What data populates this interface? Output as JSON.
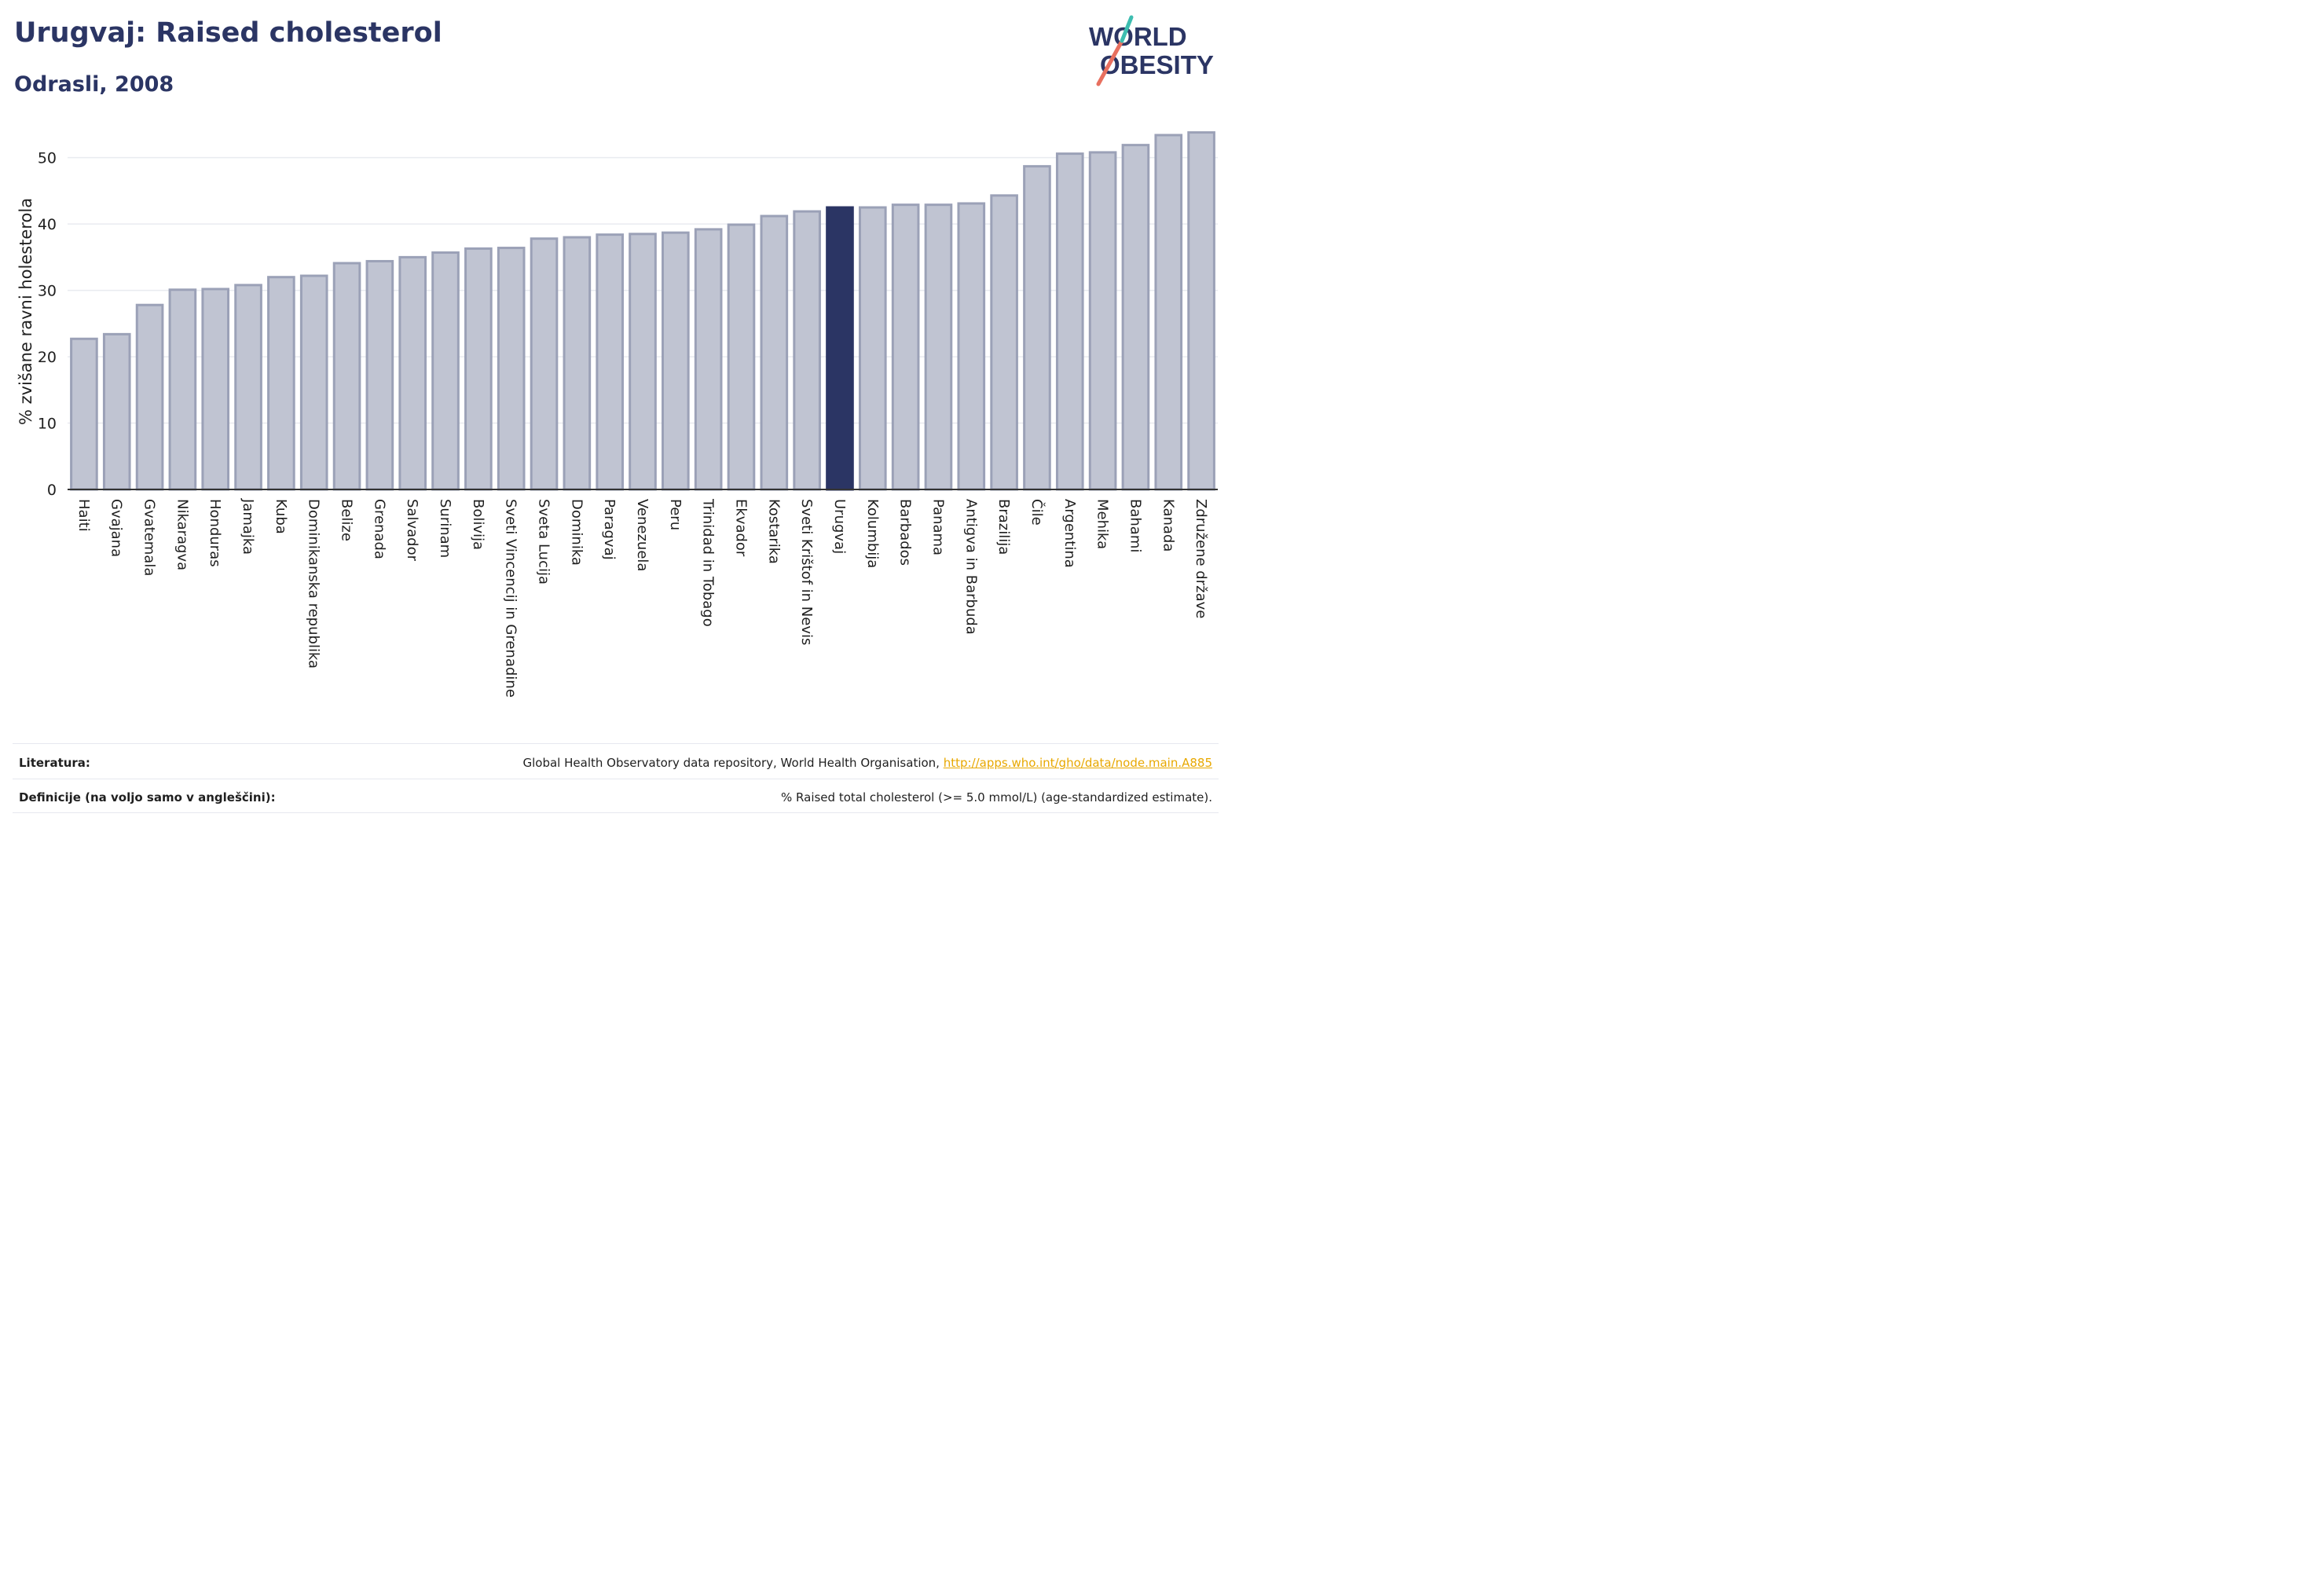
{
  "header": {
    "title": "Urugvaj: Raised cholesterol",
    "subtitle": "Odrasli, 2008"
  },
  "logo": {
    "line1": "WORLD",
    "line2": "OBESITY",
    "text_color": "#2b3564",
    "slash_colors": [
      "#e8705f",
      "#3dbdb0"
    ]
  },
  "colors": {
    "bar_default": "#c0c4d2",
    "bar_default_border": "#9ba1b7",
    "bar_highlight": "#2b3564",
    "gridline": "#e9ebf0",
    "axis": "#333333"
  },
  "chart_data": {
    "type": "bar",
    "ylabel": "% zvišane ravni holesterola",
    "xlabel": "",
    "ylim": [
      0,
      56
    ],
    "yticks": [
      0,
      10,
      20,
      30,
      40,
      50
    ],
    "grid": true,
    "highlight": "Urugvaj",
    "categories": [
      "Haiti",
      "Gvajana",
      "Gvatemala",
      "Nikaragva",
      "Honduras",
      "Jamajka",
      "Kuba",
      "Dominikanska republika",
      "Belize",
      "Grenada",
      "Salvador",
      "Surinam",
      "Bolivija",
      "Sveti Vincencij in Grenadine",
      "Sveta Lucija",
      "Dominika",
      "Paragvaj",
      "Venezuela",
      "Peru",
      "Trinidad in Tobago",
      "Ekvador",
      "Kostarika",
      "Sveti Krištof in Nevis",
      "Urugvaj",
      "Kolumbija",
      "Barbados",
      "Panama",
      "Antigva in Barbuda",
      "Brazilija",
      "Čile",
      "Argentina",
      "Mehika",
      "Bahami",
      "Kanada",
      "Združene države"
    ],
    "values": [
      22.7,
      23.4,
      27.8,
      30.1,
      30.2,
      30.8,
      32.0,
      32.2,
      34.1,
      34.4,
      35.0,
      35.7,
      36.3,
      36.4,
      37.8,
      38.0,
      38.4,
      38.5,
      38.7,
      39.2,
      39.9,
      41.2,
      41.9,
      42.5,
      42.5,
      42.9,
      42.9,
      43.1,
      44.3,
      48.7,
      50.6,
      50.8,
      51.9,
      53.4,
      53.8
    ]
  },
  "footer": {
    "literature_label": "Literatura:",
    "literature_text": "Global Health Observatory data repository, World Health Organisation, ",
    "literature_link": "http://apps.who.int/gho/data/node.main.A885",
    "definitions_label": "Definicije (na voljo samo v angleščini):",
    "definitions_text": "% Raised total cholesterol (>= 5.0 mmol/L) (age-standardized estimate)."
  }
}
